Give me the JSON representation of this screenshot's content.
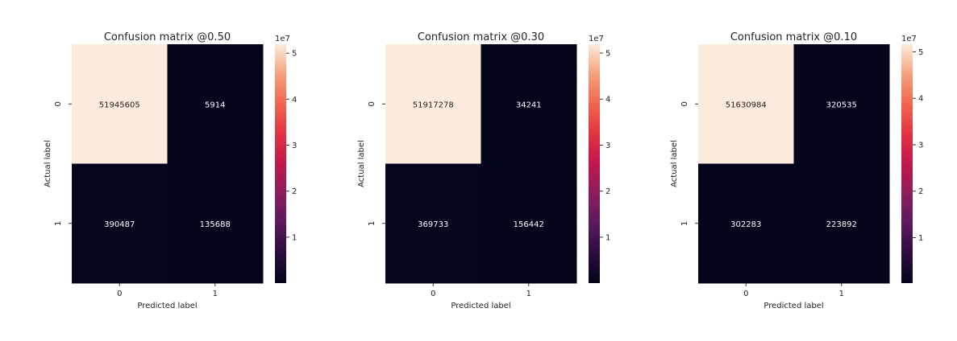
{
  "chart_data": [
    {
      "type": "heatmap",
      "title": "Confusion matrix @0.50",
      "xlabel": "Predicted label",
      "ylabel": "Actual label",
      "x_ticks": [
        "0",
        "1"
      ],
      "y_ticks": [
        "0",
        "1"
      ],
      "values": [
        [
          51945605,
          5914
        ],
        [
          390487,
          135688
        ]
      ],
      "cell_labels": [
        [
          "51945605",
          "5914"
        ],
        [
          "390487",
          "135688"
        ]
      ],
      "colorbar": {
        "ticks": [
          "1",
          "2",
          "3",
          "4",
          "5"
        ],
        "tick_values": [
          10000000.0,
          20000000.0,
          30000000.0,
          40000000.0,
          50000000.0
        ],
        "multiplier": "1e7",
        "vmin": 5914,
        "vmax": 51945605
      },
      "colormap": "rocket"
    },
    {
      "type": "heatmap",
      "title": "Confusion matrix @0.30",
      "xlabel": "Predicted label",
      "ylabel": "Actual label",
      "x_ticks": [
        "0",
        "1"
      ],
      "y_ticks": [
        "0",
        "1"
      ],
      "values": [
        [
          51917278,
          34241
        ],
        [
          369733,
          156442
        ]
      ],
      "cell_labels": [
        [
          "51917278",
          "34241"
        ],
        [
          "369733",
          "156442"
        ]
      ],
      "colorbar": {
        "ticks": [
          "1",
          "2",
          "3",
          "4",
          "5"
        ],
        "tick_values": [
          10000000.0,
          20000000.0,
          30000000.0,
          40000000.0,
          50000000.0
        ],
        "multiplier": "1e7",
        "vmin": 34241,
        "vmax": 51917278
      },
      "colormap": "rocket"
    },
    {
      "type": "heatmap",
      "title": "Confusion matrix @0.10",
      "xlabel": "Predicted label",
      "ylabel": "Actual label",
      "x_ticks": [
        "0",
        "1"
      ],
      "y_ticks": [
        "0",
        "1"
      ],
      "values": [
        [
          51630984,
          320535
        ],
        [
          302283,
          223892
        ]
      ],
      "cell_labels": [
        [
          "51630984",
          "320535"
        ],
        [
          "302283",
          "223892"
        ]
      ],
      "colorbar": {
        "ticks": [
          "1",
          "2",
          "3",
          "4",
          "5"
        ],
        "tick_values": [
          10000000.0,
          20000000.0,
          30000000.0,
          40000000.0,
          50000000.0
        ],
        "multiplier": "1e7",
        "vmin": 223892,
        "vmax": 51630984
      },
      "colormap": "rocket"
    }
  ],
  "colors": {
    "high": "#faebdd",
    "low": "#03051a"
  }
}
